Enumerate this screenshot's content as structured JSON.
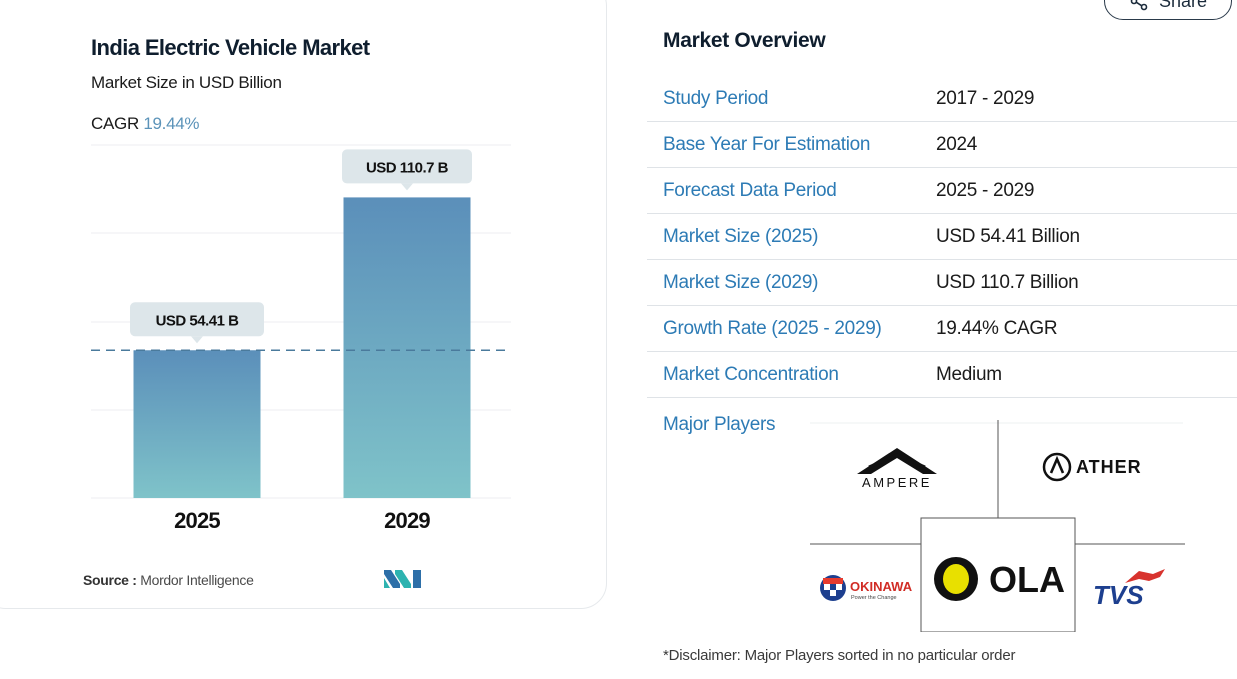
{
  "chart_data": {
    "type": "bar",
    "title": "India Electric Vehicle Market",
    "subtitle": "Market Size in USD Billion",
    "cagr_label": "CAGR",
    "cagr_value": "19.44%",
    "categories": [
      "2025",
      "2029"
    ],
    "values": [
      54.41,
      110.7
    ],
    "data_labels": [
      "USD 54.41 B",
      "USD 110.7 B"
    ],
    "ylim": [
      0,
      130
    ],
    "grid": true,
    "colors": {
      "bar_top": "#5b8fba",
      "bar_bottom": "#7fc3c9",
      "label_bg": "#dde6ea",
      "dash": "#4a7a9c"
    }
  },
  "source": {
    "label": "Source :",
    "name": "Mordor Intelligence"
  },
  "share": {
    "label": "Share"
  },
  "overview": {
    "title": "Market Overview",
    "rows": [
      {
        "label": "Study Period",
        "value": "2017 - 2029"
      },
      {
        "label": "Base Year For Estimation",
        "value": "2024"
      },
      {
        "label": "Forecast Data Period",
        "value": "2025 - 2029"
      },
      {
        "label": "Market Size (2025)",
        "value": "USD 54.41 Billion"
      },
      {
        "label": "Market Size (2029)",
        "value": "USD 110.7 Billion"
      },
      {
        "label": "Growth Rate (2025 - 2029)",
        "value": "19.44% CAGR"
      },
      {
        "label": "Market Concentration",
        "value": "Medium"
      }
    ]
  },
  "players": {
    "label": "Major Players",
    "names": [
      "AMPERE",
      "ATHER",
      "OKINAWA",
      "OLA",
      "TVS"
    ],
    "okinawa_tagline": "Power the Change"
  },
  "disclaimer": "*Disclaimer: Major Players sorted in no particular order",
  "colors": {
    "accent": "#2d7bb5",
    "heading": "#0f1e2e"
  }
}
